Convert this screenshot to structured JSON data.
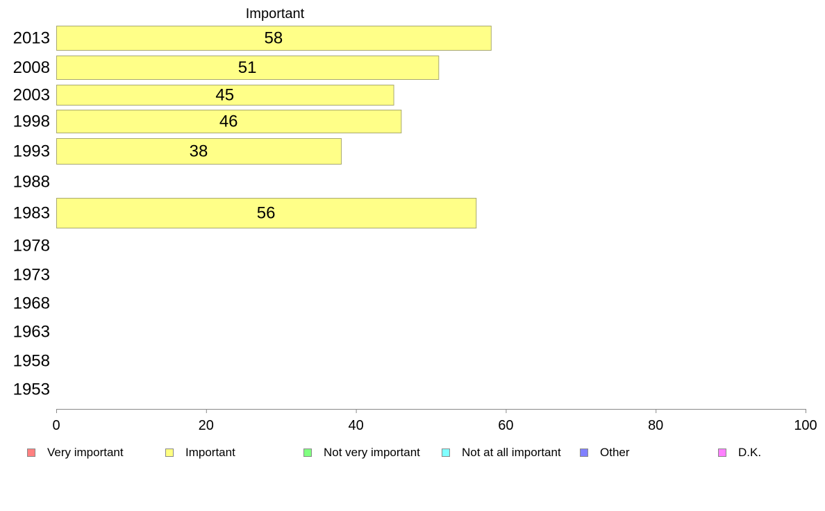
{
  "chart_data": {
    "type": "bar",
    "orientation": "horizontal",
    "title": "Important",
    "categories": [
      "2013",
      "2008",
      "2003",
      "1998",
      "1993",
      "1988",
      "1983",
      "1978",
      "1973",
      "1968",
      "1963",
      "1958",
      "1953"
    ],
    "series": [
      {
        "name": "Important",
        "values": [
          58,
          51,
          45,
          46,
          38,
          null,
          56,
          null,
          null,
          null,
          null,
          null,
          null
        ],
        "color": "#ffff88"
      }
    ],
    "xlim": [
      0,
      100
    ],
    "xticks": [
      "0",
      "20",
      "40",
      "60",
      "80",
      "100"
    ],
    "grid": false,
    "legend_position": "bottom",
    "legend": [
      {
        "label": "Very important",
        "color": "#ff8080"
      },
      {
        "label": "Important",
        "color": "#ffff80"
      },
      {
        "label": "Not very important",
        "color": "#80ff80"
      },
      {
        "label": "Not at all important",
        "color": "#80ffff"
      },
      {
        "label": "Other",
        "color": "#8080ff"
      },
      {
        "label": "D.K.",
        "color": "#ff80ff"
      }
    ]
  }
}
